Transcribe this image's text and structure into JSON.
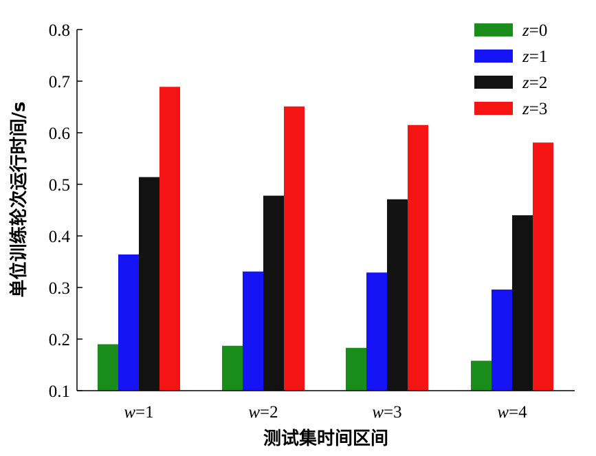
{
  "chart_data": {
    "type": "bar",
    "xlabel": "测试集时间区间",
    "ylabel": "单位训练轮次运行时间/s",
    "ylim": [
      0.1,
      0.8
    ],
    "yticks": [
      "0.1",
      "0.2",
      "0.3",
      "0.4",
      "0.5",
      "0.6",
      "0.7",
      "0.8"
    ],
    "categories": [
      {
        "var": "w",
        "eq": "=1"
      },
      {
        "var": "w",
        "eq": "=2"
      },
      {
        "var": "w",
        "eq": "=3"
      },
      {
        "var": "w",
        "eq": "=4"
      }
    ],
    "legend_position": "top-right",
    "series": [
      {
        "var": "z",
        "eq": "=0",
        "color": "#1a8c1a",
        "values": [
          0.19,
          0.187,
          0.183,
          0.158
        ]
      },
      {
        "var": "z",
        "eq": "=1",
        "color": "#1414f5",
        "values": [
          0.364,
          0.331,
          0.329,
          0.296
        ]
      },
      {
        "var": "z",
        "eq": "=2",
        "color": "#121212",
        "values": [
          0.514,
          0.478,
          0.471,
          0.44
        ]
      },
      {
        "var": "z",
        "eq": "=3",
        "color": "#f51414",
        "values": [
          0.689,
          0.651,
          0.615,
          0.581
        ]
      }
    ]
  }
}
